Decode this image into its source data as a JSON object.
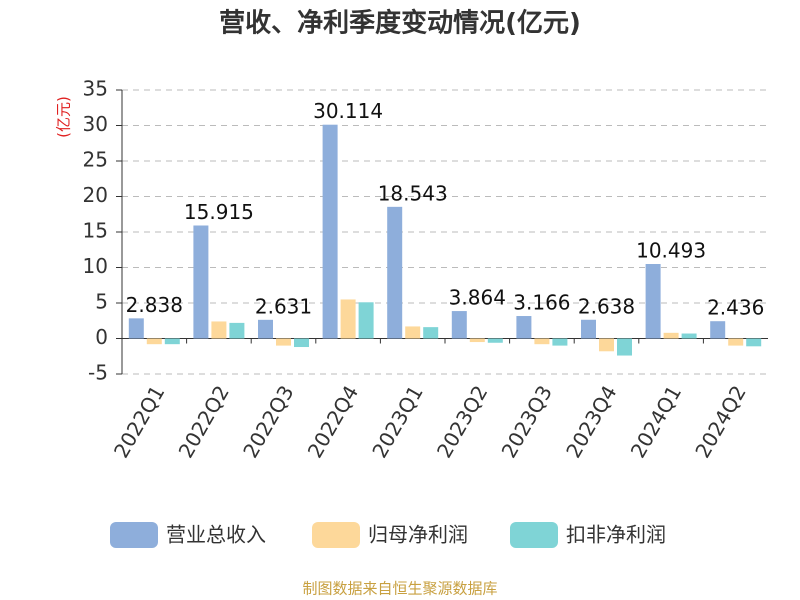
{
  "chart_data": {
    "type": "bar",
    "title": "营收、净利季度变动情况(亿元)",
    "y_label": "(亿元)",
    "source": "制图数据来自恒生聚源数据库",
    "categories": [
      "2022Q1",
      "2022Q2",
      "2022Q3",
      "2022Q4",
      "2023Q1",
      "2023Q2",
      "2023Q3",
      "2023Q4",
      "2024Q1",
      "2024Q2"
    ],
    "series": [
      {
        "name": "营业总收入",
        "color": "#8eaedb",
        "show_labels": true,
        "values": [
          2.838,
          15.915,
          2.631,
          30.114,
          18.543,
          3.864,
          3.166,
          2.638,
          10.493,
          2.436
        ]
      },
      {
        "name": "归母净利润",
        "color": "#fdd89a",
        "show_labels": false,
        "values": [
          -0.8,
          2.4,
          -1.0,
          5.5,
          1.7,
          -0.5,
          -0.8,
          -1.8,
          0.8,
          -1.0
        ]
      },
      {
        "name": "扣非净利润",
        "color": "#7fd4d6",
        "show_labels": false,
        "values": [
          -0.8,
          2.2,
          -1.2,
          5.1,
          1.6,
          -0.6,
          -1.0,
          -2.4,
          0.7,
          -1.1
        ]
      }
    ],
    "ylim": [
      -5,
      35
    ],
    "yticks": [
      -5,
      0,
      5,
      10,
      15,
      20,
      25,
      30,
      35
    ],
    "grid": true
  }
}
